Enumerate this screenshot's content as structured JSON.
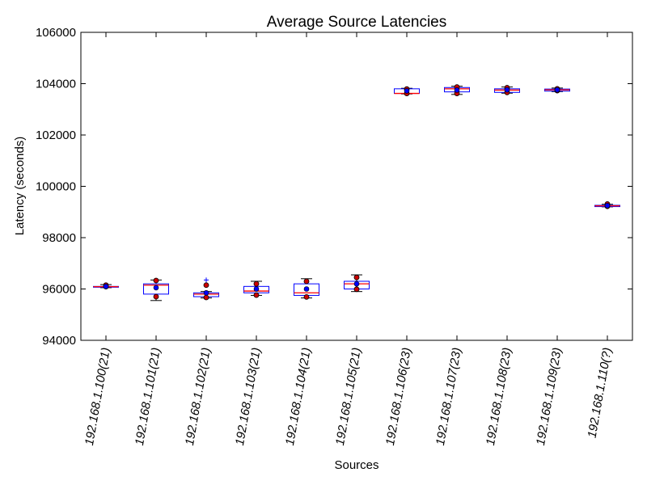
{
  "chart_data": {
    "type": "box",
    "title": "Average Source Latencies",
    "xlabel": "Sources",
    "ylabel": "Latency (seconds)",
    "ylim": [
      94000,
      106000
    ],
    "yticks": [
      94000,
      96000,
      98000,
      100000,
      102000,
      104000,
      106000
    ],
    "grid": false,
    "categories": [
      "192.168.1.100(21)",
      "192.168.1.101(21)",
      "192.168.1.102(21)",
      "192.168.1.103(21)",
      "192.168.1.104(21)",
      "192.168.1.105(21)",
      "192.168.1.106(23)",
      "192.168.1.107(23)",
      "192.168.1.108(23)",
      "192.168.1.109(23)",
      "192.168.1.110(?)"
    ],
    "boxes": [
      {
        "min": 96050,
        "q1": 96070,
        "median": 96090,
        "q3": 96100,
        "max": 96170,
        "mean": 96100,
        "outliers": [],
        "points": [
          96090,
          96150
        ]
      },
      {
        "min": 95550,
        "q1": 95800,
        "median": 96150,
        "q3": 96200,
        "max": 96350,
        "mean": 96050,
        "outliers": [],
        "points": [
          95700,
          96330
        ]
      },
      {
        "min": 95650,
        "q1": 95700,
        "median": 95800,
        "q3": 95850,
        "max": 95900,
        "mean": 95850,
        "outliers": [
          96350
        ],
        "points": [
          95670,
          96150
        ]
      },
      {
        "min": 95750,
        "q1": 95850,
        "median": 95920,
        "q3": 96100,
        "max": 96300,
        "mean": 96000,
        "outliers": [],
        "points": [
          95760,
          96200
        ]
      },
      {
        "min": 95650,
        "q1": 95750,
        "median": 95850,
        "q3": 96200,
        "max": 96400,
        "mean": 96000,
        "outliers": [],
        "points": [
          95690,
          96300
        ]
      },
      {
        "min": 95900,
        "q1": 96000,
        "median": 96200,
        "q3": 96300,
        "max": 96550,
        "mean": 96200,
        "outliers": [],
        "points": [
          95990,
          96450
        ]
      },
      {
        "min": 103600,
        "q1": 103620,
        "median": 103620,
        "q3": 103800,
        "max": 103820,
        "mean": 103720,
        "outliers": [],
        "points": [
          103620,
          103790
        ]
      },
      {
        "min": 103580,
        "q1": 103680,
        "median": 103800,
        "q3": 103850,
        "max": 103900,
        "mean": 103750,
        "outliers": [],
        "points": [
          103620,
          103870
        ]
      },
      {
        "min": 103630,
        "q1": 103660,
        "median": 103750,
        "q3": 103800,
        "max": 103870,
        "mean": 103760,
        "outliers": [],
        "points": [
          103660,
          103840
        ]
      },
      {
        "min": 103690,
        "q1": 103710,
        "median": 103760,
        "q3": 103790,
        "max": 103830,
        "mean": 103760,
        "outliers": [],
        "points": [
          103730,
          103800
        ]
      },
      {
        "min": 99200,
        "q1": 99210,
        "median": 99240,
        "q3": 99260,
        "max": 99300,
        "mean": 99250,
        "outliers": [],
        "points": [
          99220,
          99310
        ]
      }
    ],
    "colors": {
      "box": "#0000ff",
      "median": "#ff0000",
      "whisker": "#000000",
      "outlier": "#0000ff",
      "mean_marker": "#0000ff",
      "point_marker": "#cc0000"
    }
  }
}
